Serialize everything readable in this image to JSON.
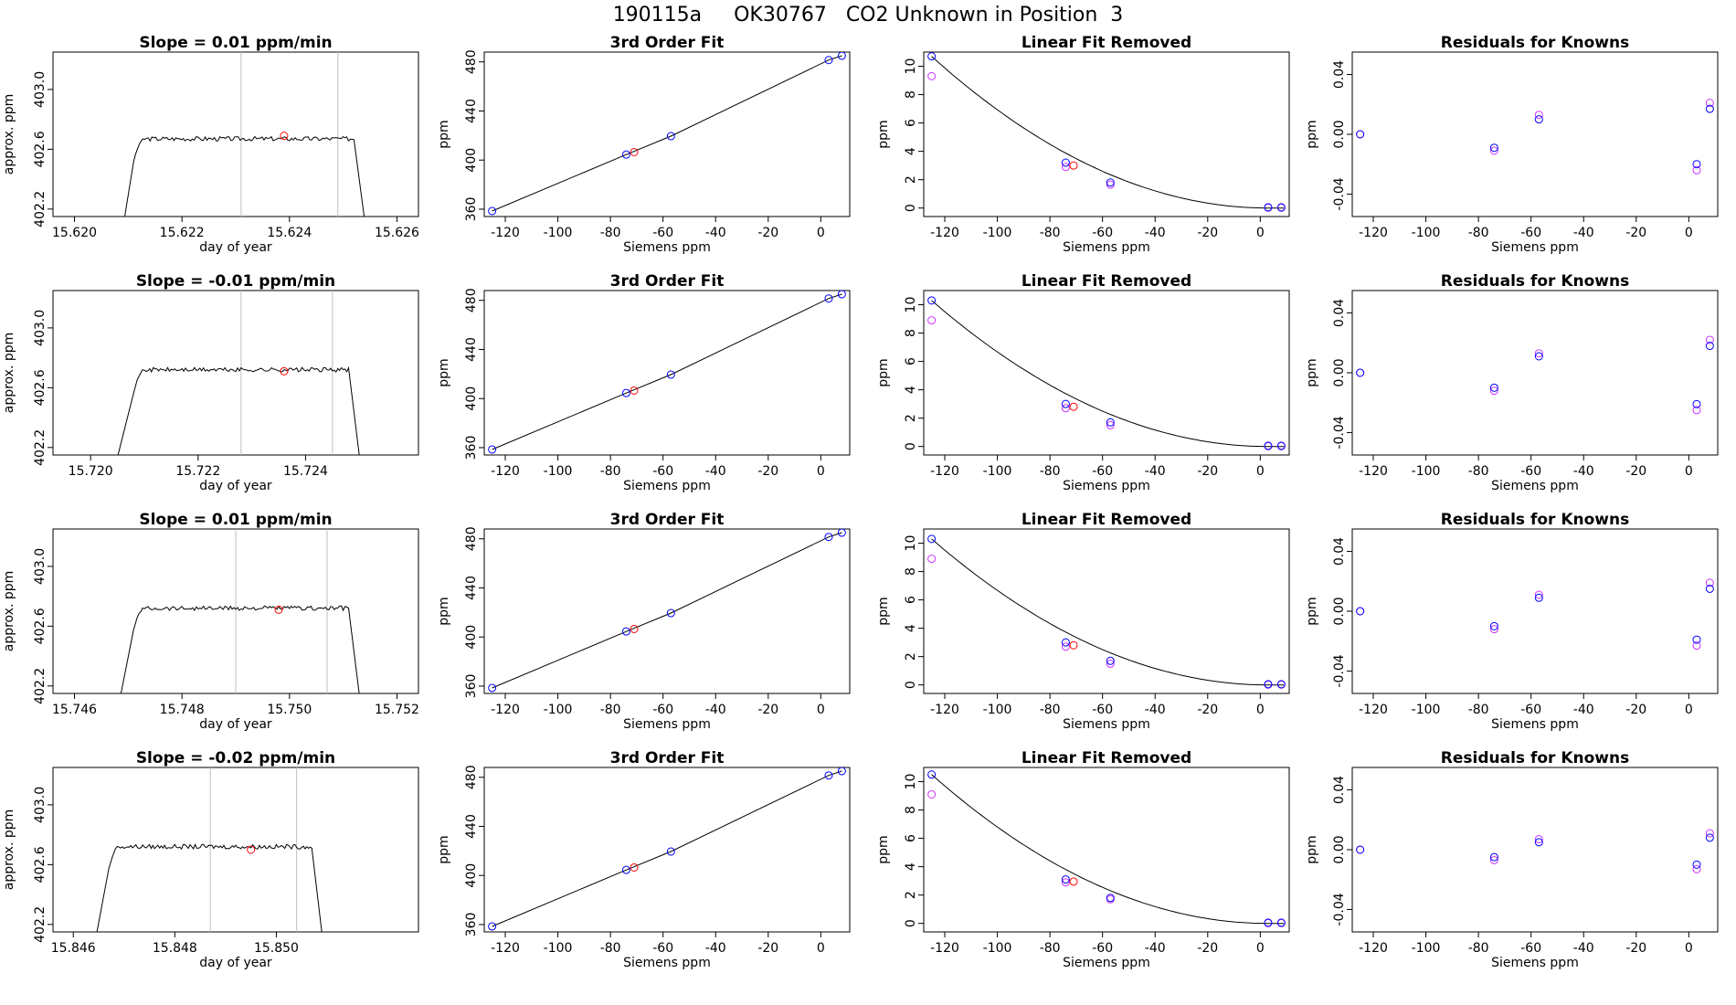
{
  "page_title": "190115a     OK30767   CO2 Unknown in Position  3",
  "colors": {
    "known_marker": "#0000ff",
    "unknown_marker": "#ff0000",
    "alt_marker": "#cc33ff",
    "trace_line": "#000000",
    "window_line": "#bebebe"
  },
  "chart_data": [
    {
      "type": "line",
      "title": "Slope =  0.01  ppm/min",
      "xlabel": "day of year",
      "ylabel": "approx. ppm",
      "xlim": [
        15.6196,
        15.6264
      ],
      "ylim": [
        402.15,
        403.25
      ],
      "xticks": [
        15.62,
        15.622,
        15.624,
        15.626
      ],
      "xtick_labels": [
        "15.620",
        "15.622",
        "15.624",
        "15.626"
      ],
      "yticks": [
        402.2,
        402.6,
        403.0
      ],
      "ytick_labels": [
        "402.2",
        "402.6",
        "403.0"
      ],
      "trace": {
        "start": 15.6208,
        "rise": 15.6211,
        "fall_start": 15.6252,
        "end": 15.6255,
        "plateau": 402.67,
        "noise": 0.015
      },
      "window_lines": [
        15.6231,
        15.6249
      ],
      "unknown_point": [
        15.6239,
        402.69
      ]
    },
    {
      "type": "line",
      "title": "3rd Order Fit",
      "xlabel": "Siemens ppm",
      "ylabel": "ppm",
      "xlim": [
        -128,
        11
      ],
      "ylim": [
        354,
        488
      ],
      "xticks": [
        -120,
        -100,
        -80,
        -60,
        -40,
        -20,
        0
      ],
      "xtick_labels": [
        "-120",
        "-100",
        "-80",
        "-60",
        "-40",
        "-20",
        "0"
      ],
      "yticks": [
        360,
        400,
        440,
        480
      ],
      "ytick_labels": [
        "360",
        "400",
        "440",
        "480"
      ],
      "curve_points": [
        [
          -125,
          358.5
        ],
        [
          -74,
          404.5
        ],
        [
          -57,
          419.5
        ],
        [
          3,
          481.5
        ],
        [
          8,
          485
        ]
      ],
      "known_points": [
        [
          -125,
          358.5
        ],
        [
          -74,
          404.5
        ],
        [
          -57,
          419.5
        ],
        [
          3,
          481.5
        ],
        [
          8,
          485
        ]
      ],
      "unknown_point": [
        -71,
        406.5
      ]
    },
    {
      "type": "line",
      "title": "Linear Fit Removed",
      "xlabel": "Siemens ppm",
      "ylabel": "ppm",
      "xlim": [
        -128,
        11
      ],
      "ylim": [
        -0.6,
        11
      ],
      "xticks": [
        -120,
        -100,
        -80,
        -60,
        -40,
        -20,
        0
      ],
      "xtick_labels": [
        "-120",
        "-100",
        "-80",
        "-60",
        "-40",
        "-20",
        "0"
      ],
      "yticks": [
        0,
        2,
        4,
        6,
        8,
        10
      ],
      "ytick_labels": [
        "0",
        "2",
        "4",
        "6",
        "8",
        "10"
      ],
      "curve_type": "quadratic",
      "curve_params": {
        "a": 10.7,
        "x_min": 3,
        "x_left": -125
      },
      "known_points": [
        [
          -125,
          10.7
        ],
        [
          -74,
          3.2
        ],
        [
          -57,
          1.8
        ],
        [
          3,
          0.05
        ],
        [
          8,
          0.05
        ]
      ],
      "alt_points": [
        [
          -125,
          9.3
        ],
        [
          -74,
          2.9
        ],
        [
          -57,
          1.65
        ],
        [
          3,
          0.02
        ],
        [
          8,
          0.02
        ]
      ],
      "unknown_point": [
        -71,
        3.0
      ]
    },
    {
      "type": "scatter",
      "title": "Residuals for Knowns",
      "xlabel": "Siemens ppm",
      "ylabel": "ppm",
      "xlim": [
        -128,
        11
      ],
      "ylim": [
        -0.055,
        0.055
      ],
      "xticks": [
        -120,
        -100,
        -80,
        -60,
        -40,
        -20,
        0
      ],
      "xtick_labels": [
        "-120",
        "-100",
        "-80",
        "-60",
        "-40",
        "-20",
        "0"
      ],
      "yticks": [
        -0.04,
        0.0,
        0.04
      ],
      "ytick_labels": [
        "-0.04",
        "0.00",
        "0.04"
      ],
      "known_points": [
        [
          -125,
          0.0
        ],
        [
          -74,
          -0.009
        ],
        [
          -57,
          0.01
        ],
        [
          3,
          -0.02
        ],
        [
          8,
          0.017
        ]
      ],
      "alt_points": [
        [
          -125,
          0.0
        ],
        [
          -74,
          -0.011
        ],
        [
          -57,
          0.013
        ],
        [
          3,
          -0.024
        ],
        [
          8,
          0.021
        ]
      ]
    },
    {
      "type": "line",
      "title": "Slope =  -0.01  ppm/min",
      "xlabel": "day of year",
      "ylabel": "approx. ppm",
      "xlim": [
        15.7193,
        15.7261
      ],
      "ylim": [
        402.15,
        403.25
      ],
      "xticks": [
        15.72,
        15.722,
        15.724
      ],
      "xtick_labels": [
        "15.720",
        "15.722",
        "15.724"
      ],
      "yticks": [
        402.2,
        402.6,
        403.0
      ],
      "ytick_labels": [
        "402.2",
        "402.6",
        "403.0"
      ],
      "trace": {
        "start": 15.7203,
        "rise": 15.7208,
        "fall_start": 15.7248,
        "end": 15.7251,
        "plateau": 402.72,
        "noise": 0.015
      },
      "window_lines": [
        15.7228,
        15.7245
      ],
      "unknown_point": [
        15.7236,
        402.71
      ]
    },
    {
      "type": "line",
      "title": "3rd Order Fit",
      "xlabel": "Siemens ppm",
      "ylabel": "ppm",
      "xlim": [
        -128,
        11
      ],
      "ylim": [
        354,
        488
      ],
      "xticks": [
        -120,
        -100,
        -80,
        -60,
        -40,
        -20,
        0
      ],
      "xtick_labels": [
        "-120",
        "-100",
        "-80",
        "-60",
        "-40",
        "-20",
        "0"
      ],
      "yticks": [
        360,
        400,
        440,
        480
      ],
      "ytick_labels": [
        "360",
        "400",
        "440",
        "480"
      ],
      "curve_points": [
        [
          -125,
          358.5
        ],
        [
          -74,
          404.5
        ],
        [
          -57,
          419.5
        ],
        [
          3,
          481.5
        ],
        [
          8,
          485
        ]
      ],
      "known_points": [
        [
          -125,
          358.5
        ],
        [
          -74,
          404.5
        ],
        [
          -57,
          419.5
        ],
        [
          3,
          481.5
        ],
        [
          8,
          485
        ]
      ],
      "unknown_point": [
        -71,
        406.5
      ]
    },
    {
      "type": "line",
      "title": "Linear Fit Removed",
      "xlabel": "Siemens ppm",
      "ylabel": "ppm",
      "xlim": [
        -128,
        11
      ],
      "ylim": [
        -0.6,
        11
      ],
      "xticks": [
        -120,
        -100,
        -80,
        -60,
        -40,
        -20,
        0
      ],
      "xtick_labels": [
        "-120",
        "-100",
        "-80",
        "-60",
        "-40",
        "-20",
        "0"
      ],
      "yticks": [
        0,
        2,
        4,
        6,
        8,
        10
      ],
      "ytick_labels": [
        "0",
        "2",
        "4",
        "6",
        "8",
        "10"
      ],
      "curve_type": "quadratic",
      "curve_params": {
        "a": 10.3,
        "x_min": 3,
        "x_left": -125
      },
      "known_points": [
        [
          -125,
          10.3
        ],
        [
          -74,
          3.0
        ],
        [
          -57,
          1.7
        ],
        [
          3,
          0.05
        ],
        [
          8,
          0.05
        ]
      ],
      "alt_points": [
        [
          -125,
          8.9
        ],
        [
          -74,
          2.7
        ],
        [
          -57,
          1.5
        ],
        [
          3,
          0.02
        ],
        [
          8,
          0.02
        ]
      ],
      "unknown_point": [
        -71,
        2.8
      ]
    },
    {
      "type": "scatter",
      "title": "Residuals for Knowns",
      "xlabel": "Siemens ppm",
      "ylabel": "ppm",
      "xlim": [
        -128,
        11
      ],
      "ylim": [
        -0.055,
        0.055
      ],
      "xticks": [
        -120,
        -100,
        -80,
        -60,
        -40,
        -20,
        0
      ],
      "xtick_labels": [
        "-120",
        "-100",
        "-80",
        "-60",
        "-40",
        "-20",
        "0"
      ],
      "yticks": [
        -0.04,
        0.0,
        0.04
      ],
      "ytick_labels": [
        "-0.04",
        "0.00",
        "0.04"
      ],
      "known_points": [
        [
          -125,
          0.0
        ],
        [
          -74,
          -0.01
        ],
        [
          -57,
          0.011
        ],
        [
          3,
          -0.021
        ],
        [
          8,
          0.018
        ]
      ],
      "alt_points": [
        [
          -125,
          0.0
        ],
        [
          -74,
          -0.012
        ],
        [
          -57,
          0.013
        ],
        [
          3,
          -0.025
        ],
        [
          8,
          0.022
        ]
      ]
    },
    {
      "type": "line",
      "title": "Slope =  0.01  ppm/min",
      "xlabel": "day of year",
      "ylabel": "approx. ppm",
      "xlim": [
        15.7456,
        15.7524
      ],
      "ylim": [
        402.15,
        403.25
      ],
      "xticks": [
        15.746,
        15.748,
        15.75,
        15.752
      ],
      "xtick_labels": [
        "15.746",
        "15.748",
        "15.750",
        "15.752"
      ],
      "yticks": [
        402.2,
        402.6,
        403.0
      ],
      "ytick_labels": [
        "402.2",
        "402.6",
        "403.0"
      ],
      "trace": {
        "start": 15.7467,
        "rise": 15.7471,
        "fall_start": 15.7511,
        "end": 15.7514,
        "plateau": 402.72,
        "noise": 0.015
      },
      "window_lines": [
        15.749,
        15.7507
      ],
      "unknown_point": [
        15.7498,
        402.71
      ]
    },
    {
      "type": "line",
      "title": "3rd Order Fit",
      "xlabel": "Siemens ppm",
      "ylabel": "ppm",
      "xlim": [
        -128,
        11
      ],
      "ylim": [
        354,
        488
      ],
      "xticks": [
        -120,
        -100,
        -80,
        -60,
        -40,
        -20,
        0
      ],
      "xtick_labels": [
        "-120",
        "-100",
        "-80",
        "-60",
        "-40",
        "-20",
        "0"
      ],
      "yticks": [
        360,
        400,
        440,
        480
      ],
      "ytick_labels": [
        "360",
        "400",
        "440",
        "480"
      ],
      "curve_points": [
        [
          -125,
          358.5
        ],
        [
          -74,
          404.5
        ],
        [
          -57,
          419.5
        ],
        [
          3,
          481.5
        ],
        [
          8,
          485
        ]
      ],
      "known_points": [
        [
          -125,
          358.5
        ],
        [
          -74,
          404.5
        ],
        [
          -57,
          419.5
        ],
        [
          3,
          481.5
        ],
        [
          8,
          485
        ]
      ],
      "unknown_point": [
        -71,
        406.5
      ]
    },
    {
      "type": "line",
      "title": "Linear Fit Removed",
      "xlabel": "Siemens ppm",
      "ylabel": "ppm",
      "xlim": [
        -128,
        11
      ],
      "ylim": [
        -0.6,
        11
      ],
      "xticks": [
        -120,
        -100,
        -80,
        -60,
        -40,
        -20,
        0
      ],
      "xtick_labels": [
        "-120",
        "-100",
        "-80",
        "-60",
        "-40",
        "-20",
        "0"
      ],
      "yticks": [
        0,
        2,
        4,
        6,
        8,
        10
      ],
      "ytick_labels": [
        "0",
        "2",
        "4",
        "6",
        "8",
        "10"
      ],
      "curve_type": "quadratic",
      "curve_params": {
        "a": 10.3,
        "x_min": 3,
        "x_left": -125
      },
      "known_points": [
        [
          -125,
          10.3
        ],
        [
          -74,
          3.0
        ],
        [
          -57,
          1.7
        ],
        [
          3,
          0.05
        ],
        [
          8,
          0.05
        ]
      ],
      "alt_points": [
        [
          -125,
          8.9
        ],
        [
          -74,
          2.7
        ],
        [
          -57,
          1.5
        ],
        [
          3,
          0.02
        ],
        [
          8,
          0.02
        ]
      ],
      "unknown_point": [
        -71,
        2.8
      ]
    },
    {
      "type": "scatter",
      "title": "Residuals for Knowns",
      "xlabel": "Siemens ppm",
      "ylabel": "ppm",
      "xlim": [
        -128,
        11
      ],
      "ylim": [
        -0.055,
        0.055
      ],
      "xticks": [
        -120,
        -100,
        -80,
        -60,
        -40,
        -20,
        0
      ],
      "xtick_labels": [
        "-120",
        "-100",
        "-80",
        "-60",
        "-40",
        "-20",
        "0"
      ],
      "yticks": [
        -0.04,
        0.0,
        0.04
      ],
      "ytick_labels": [
        "-0.04",
        "0.00",
        "0.04"
      ],
      "known_points": [
        [
          -125,
          0.0
        ],
        [
          -74,
          -0.01
        ],
        [
          -57,
          0.009
        ],
        [
          3,
          -0.019
        ],
        [
          8,
          0.015
        ]
      ],
      "alt_points": [
        [
          -125,
          0.0
        ],
        [
          -74,
          -0.012
        ],
        [
          -57,
          0.011
        ],
        [
          3,
          -0.023
        ],
        [
          8,
          0.019
        ]
      ]
    },
    {
      "type": "line",
      "title": "Slope =  -0.02  ppm/min",
      "xlabel": "day of year",
      "ylabel": "approx. ppm",
      "xlim": [
        15.8456,
        15.8528
      ],
      "ylim": [
        402.15,
        403.25
      ],
      "xticks": [
        15.846,
        15.848,
        15.85
      ],
      "xtick_labels": [
        "15.846",
        "15.848",
        "15.850"
      ],
      "yticks": [
        402.2,
        402.6,
        403.0
      ],
      "ytick_labels": [
        "402.2",
        "402.6",
        "403.0"
      ],
      "trace": {
        "start": 15.8463,
        "rise": 15.8467,
        "fall_start": 15.8507,
        "end": 15.851,
        "plateau": 402.72,
        "noise": 0.015
      },
      "window_lines": [
        15.8487,
        15.8504
      ],
      "unknown_point": [
        15.8495,
        402.7
      ]
    },
    {
      "type": "line",
      "title": "3rd Order Fit",
      "xlabel": "Siemens ppm",
      "ylabel": "ppm",
      "xlim": [
        -128,
        11
      ],
      "ylim": [
        354,
        488
      ],
      "xticks": [
        -120,
        -100,
        -80,
        -60,
        -40,
        -20,
        0
      ],
      "xtick_labels": [
        "-120",
        "-100",
        "-80",
        "-60",
        "-40",
        "-20",
        "0"
      ],
      "yticks": [
        360,
        400,
        440,
        480
      ],
      "ytick_labels": [
        "360",
        "400",
        "440",
        "480"
      ],
      "curve_points": [
        [
          -125,
          358.5
        ],
        [
          -74,
          404.5
        ],
        [
          -57,
          419.5
        ],
        [
          3,
          481.5
        ],
        [
          8,
          485
        ]
      ],
      "known_points": [
        [
          -125,
          358.5
        ],
        [
          -74,
          404.5
        ],
        [
          -57,
          419.5
        ],
        [
          3,
          481.5
        ],
        [
          8,
          485
        ]
      ],
      "unknown_point": [
        -71,
        406.5
      ]
    },
    {
      "type": "line",
      "title": "Linear Fit Removed",
      "xlabel": "Siemens ppm",
      "ylabel": "ppm",
      "xlim": [
        -128,
        11
      ],
      "ylim": [
        -0.6,
        11
      ],
      "xticks": [
        -120,
        -100,
        -80,
        -60,
        -40,
        -20,
        0
      ],
      "xtick_labels": [
        "-120",
        "-100",
        "-80",
        "-60",
        "-40",
        "-20",
        "0"
      ],
      "yticks": [
        0,
        2,
        4,
        6,
        8,
        10
      ],
      "ytick_labels": [
        "0",
        "2",
        "4",
        "6",
        "8",
        "10"
      ],
      "curve_type": "quadratic",
      "curve_params": {
        "a": 10.5,
        "x_min": 3,
        "x_left": -125
      },
      "known_points": [
        [
          -125,
          10.5
        ],
        [
          -74,
          3.1
        ],
        [
          -57,
          1.8
        ],
        [
          3,
          0.05
        ],
        [
          8,
          0.05
        ]
      ],
      "alt_points": [
        [
          -125,
          9.1
        ],
        [
          -74,
          2.9
        ],
        [
          -57,
          1.7
        ],
        [
          3,
          0.02
        ],
        [
          8,
          0.02
        ]
      ],
      "unknown_point": [
        -71,
        2.95
      ]
    },
    {
      "type": "scatter",
      "title": "Residuals for Knowns",
      "xlabel": "Siemens ppm",
      "ylabel": "ppm",
      "xlim": [
        -128,
        11
      ],
      "ylim": [
        -0.055,
        0.055
      ],
      "xticks": [
        -120,
        -100,
        -80,
        -60,
        -40,
        -20,
        0
      ],
      "xtick_labels": [
        "-120",
        "-100",
        "-80",
        "-60",
        "-40",
        "-20",
        "0"
      ],
      "yticks": [
        -0.04,
        0.0,
        0.04
      ],
      "ytick_labels": [
        "-0.04",
        "0.00",
        "0.04"
      ],
      "known_points": [
        [
          -125,
          0.0
        ],
        [
          -74,
          -0.005
        ],
        [
          -57,
          0.005
        ],
        [
          3,
          -0.01
        ],
        [
          8,
          0.008
        ]
      ],
      "alt_points": [
        [
          -125,
          0.0
        ],
        [
          -74,
          -0.007
        ],
        [
          -57,
          0.007
        ],
        [
          3,
          -0.013
        ],
        [
          8,
          0.011
        ]
      ]
    }
  ]
}
